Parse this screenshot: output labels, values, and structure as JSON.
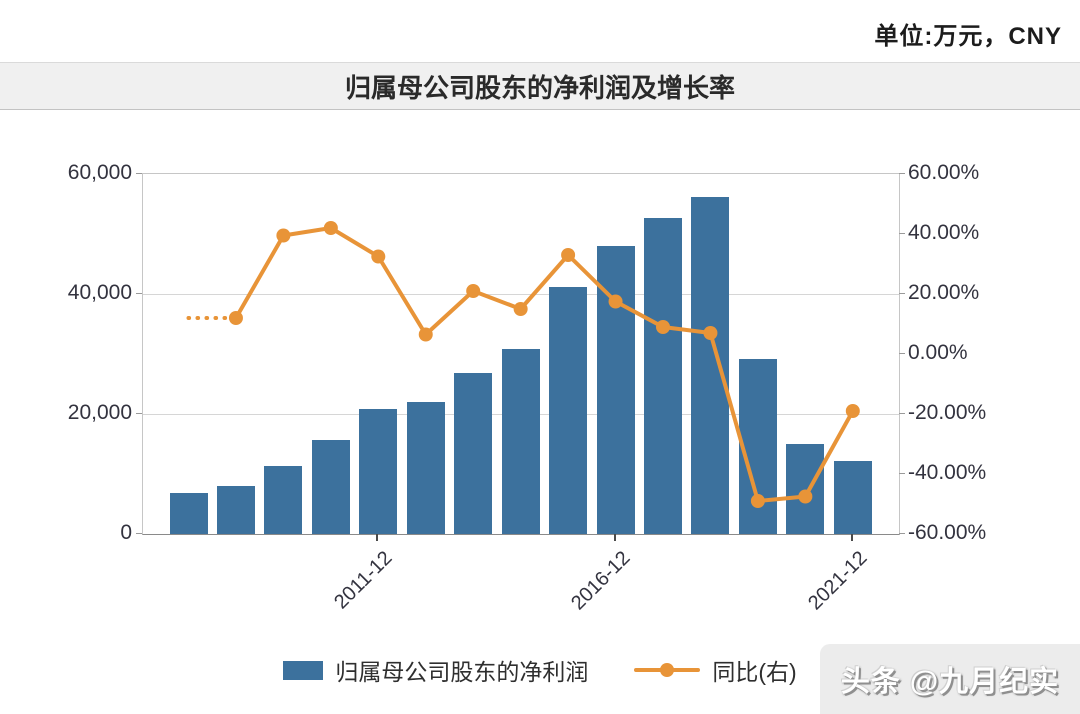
{
  "page": {
    "unit_label": "单位:万元，CNY",
    "title": "归属母公司股东的净利润及增长率",
    "watermark": "头条 @九月纪实"
  },
  "legend": {
    "bar_label": "归属母公司股东的净利润",
    "line_label": "同比(右)"
  },
  "colors": {
    "bar": "#3c719d",
    "line": "#e89438",
    "grid": "#d6d6d6",
    "axis": "#8a8a8a",
    "text": "#33333f",
    "title_band_bg": "#f0f0f0"
  },
  "chart_data": {
    "type": "bar+line",
    "title": "归属母公司股东的净利润及增长率",
    "unit": "万元 CNY",
    "bar_count": 15,
    "series": [
      {
        "name": "归属母公司股东的净利润",
        "type": "bar",
        "axis": "left",
        "values": [
          6800,
          8000,
          11300,
          15700,
          20800,
          22000,
          26800,
          30800,
          41200,
          48000,
          52700,
          56200,
          29200,
          15000,
          12200
        ]
      },
      {
        "name": "同比(右)",
        "type": "line",
        "axis": "right",
        "values_pct": [
          null,
          12,
          39.5,
          42,
          32.5,
          6.5,
          21,
          15,
          33,
          17.5,
          9,
          7,
          -49,
          -47.5,
          -19
        ],
        "lead_in_dotted": true
      }
    ],
    "x_axis": {
      "tick_labels": [
        "2011-12",
        "2016-12",
        "2021-12"
      ],
      "tick_bar_indices": [
        4,
        9,
        14
      ]
    },
    "y_axis_left": {
      "min": 0,
      "max": 60000,
      "tick_values": [
        0,
        20000,
        40000,
        60000
      ],
      "tick_labels": [
        "0",
        "20,000",
        "40,000",
        "60,000"
      ]
    },
    "y_axis_right": {
      "min": -60,
      "max": 60,
      "tick_values": [
        60,
        40,
        20,
        0,
        -20,
        -40,
        -60
      ],
      "tick_labels": [
        "60.00%",
        "40.00%",
        "20.00%",
        "0.00%",
        "-20.00%",
        "-40.00%",
        "-60.00%"
      ]
    },
    "grid": true,
    "legend_position": "bottom"
  }
}
